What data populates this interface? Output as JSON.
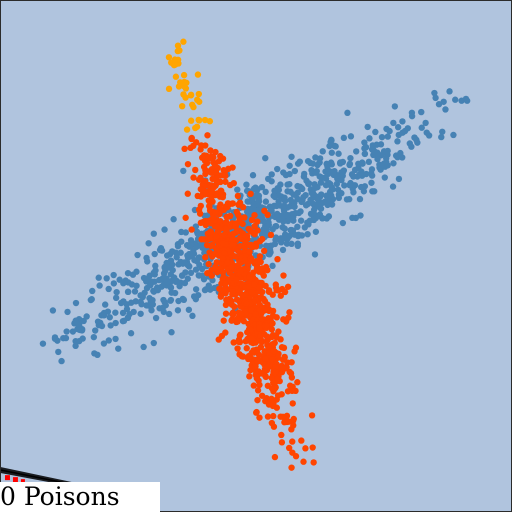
{
  "game": {
    "status_text": "0 Poisons",
    "colors": {
      "background": "#b0c4de",
      "blue_particles": "#4682b4",
      "red_particles": "#ff4500",
      "yellow_particles": "#ffa500",
      "poison_marker": "#ff0000",
      "arrow": "#000000"
    }
  }
}
